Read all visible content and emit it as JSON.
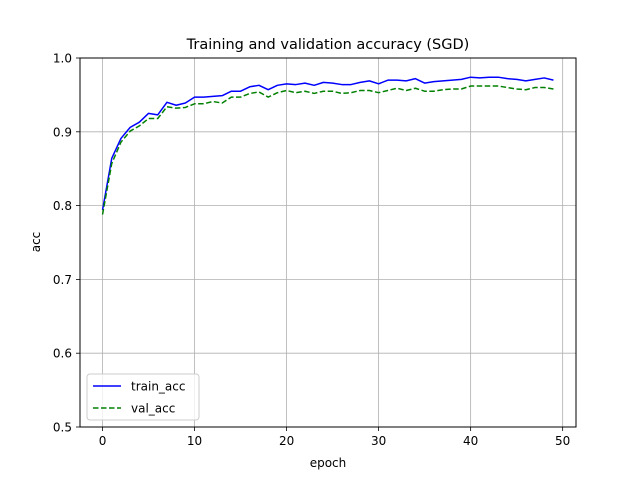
{
  "chart_data": {
    "type": "line",
    "title": "Training and validation accuracy (SGD)",
    "xlabel": "epoch",
    "ylabel": "acc",
    "xlim": [
      -2.45,
      51.45
    ],
    "ylim": [
      0.5,
      1.0
    ],
    "x_ticks": [
      0,
      10,
      20,
      30,
      40,
      50
    ],
    "y_ticks": [
      0.5,
      0.6,
      0.7,
      0.8,
      0.9,
      1.0
    ],
    "x_tick_labels": [
      "0",
      "10",
      "20",
      "30",
      "40",
      "50"
    ],
    "y_tick_labels": [
      "0.5",
      "0.6",
      "0.7",
      "0.8",
      "0.9",
      "1.0"
    ],
    "grid": true,
    "legend_position": "lower-left",
    "x": [
      0,
      1,
      2,
      3,
      4,
      5,
      6,
      7,
      8,
      9,
      10,
      11,
      12,
      13,
      14,
      15,
      16,
      17,
      18,
      19,
      20,
      21,
      22,
      23,
      24,
      25,
      26,
      27,
      28,
      29,
      30,
      31,
      32,
      33,
      34,
      35,
      36,
      37,
      38,
      39,
      40,
      41,
      42,
      43,
      44,
      45,
      46,
      47,
      48,
      49
    ],
    "series": [
      {
        "name": "train_acc",
        "color": "#0000ff",
        "style": "solid",
        "values": [
          0.794,
          0.864,
          0.891,
          0.906,
          0.913,
          0.925,
          0.923,
          0.94,
          0.936,
          0.939,
          0.947,
          0.947,
          0.948,
          0.949,
          0.955,
          0.955,
          0.961,
          0.963,
          0.957,
          0.963,
          0.965,
          0.964,
          0.966,
          0.963,
          0.967,
          0.966,
          0.964,
          0.964,
          0.967,
          0.969,
          0.965,
          0.97,
          0.97,
          0.969,
          0.972,
          0.966,
          0.968,
          0.969,
          0.97,
          0.971,
          0.974,
          0.973,
          0.974,
          0.974,
          0.972,
          0.971,
          0.969,
          0.971,
          0.973,
          0.97
        ]
      },
      {
        "name": "val_acc",
        "color": "#008000",
        "style": "dashed",
        "values": [
          0.788,
          0.857,
          0.886,
          0.901,
          0.908,
          0.918,
          0.918,
          0.934,
          0.932,
          0.933,
          0.938,
          0.938,
          0.941,
          0.939,
          0.947,
          0.947,
          0.952,
          0.954,
          0.947,
          0.953,
          0.956,
          0.953,
          0.955,
          0.952,
          0.955,
          0.955,
          0.952,
          0.953,
          0.956,
          0.956,
          0.953,
          0.956,
          0.959,
          0.956,
          0.959,
          0.955,
          0.955,
          0.957,
          0.958,
          0.958,
          0.962,
          0.962,
          0.962,
          0.962,
          0.96,
          0.958,
          0.957,
          0.96,
          0.96,
          0.958
        ]
      }
    ]
  }
}
